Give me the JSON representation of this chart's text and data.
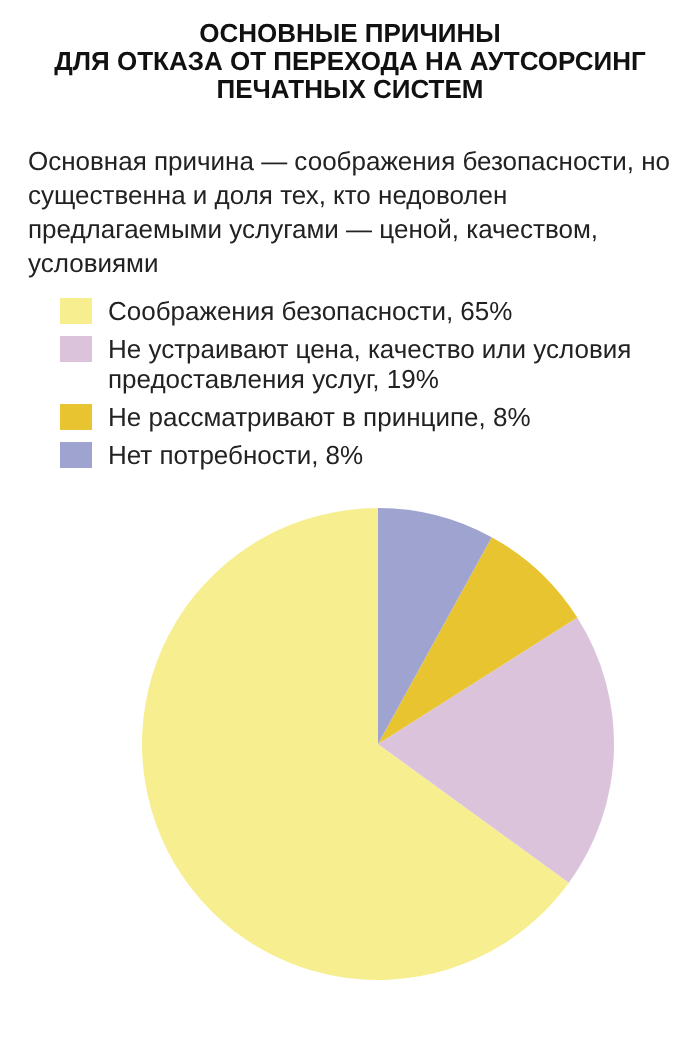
{
  "chart_data": {
    "type": "pie",
    "title": "ОСНОВНЫЕ ПРИЧИНЫ\nДЛЯ ОТКАЗА ОТ ПЕРЕХОДА НА АУТСОРСИНГ\nПЕЧАТНЫХ СИСТЕМ",
    "subtitle": "Основная причина — соображения безопасности, но существенна и доля тех, кто недоволен предлагаемыми услугами — ценой, качеством, условиями",
    "categories": [
      "Соображения безопасности, 65%",
      "Не устраивают цена, качество или условия предоставления услуг, 19%",
      "Не рассматривают в принципе, 8%",
      "Нет потребности, 8%"
    ],
    "values": [
      65,
      19,
      8,
      8
    ],
    "colors": [
      "#f7ee8f",
      "#dcc3dc",
      "#e8c430",
      "#9fa3d0"
    ],
    "legend": "top"
  }
}
